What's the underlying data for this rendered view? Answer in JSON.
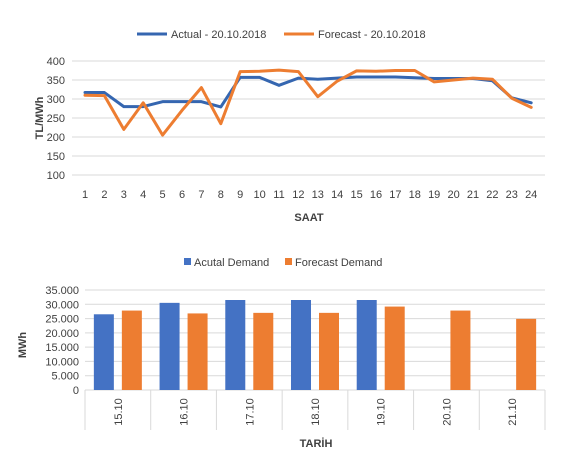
{
  "chart_data": [
    {
      "type": "line",
      "legend_position": "top",
      "grid": true,
      "xlabel": "SAAT",
      "ylabel": "TL/MWh",
      "ylim": [
        100,
        400
      ],
      "yticks": [
        "100",
        "150",
        "200",
        "250",
        "300",
        "350",
        "400"
      ],
      "x": [
        "1",
        "2",
        "3",
        "4",
        "5",
        "6",
        "7",
        "8",
        "9",
        "10",
        "11",
        "12",
        "13",
        "14",
        "15",
        "16",
        "17",
        "18",
        "19",
        "20",
        "21",
        "22",
        "23",
        "24"
      ],
      "series": [
        {
          "name": "Actual - 20.10.2018",
          "color": "#3566B0",
          "values": [
            317,
            317,
            280,
            280,
            293,
            293,
            293,
            279,
            357,
            357,
            336,
            355,
            352,
            355,
            358,
            358,
            358,
            356,
            354,
            354,
            354,
            348,
            303,
            290
          ]
        },
        {
          "name": "Forecast - 20.10.2018",
          "color": "#ED7D31",
          "values": [
            310,
            309,
            220,
            290,
            205,
            270,
            330,
            235,
            372,
            373,
            376,
            372,
            306,
            347,
            374,
            373,
            375,
            375,
            345,
            350,
            355,
            352,
            302,
            278
          ]
        }
      ]
    },
    {
      "type": "bar",
      "legend_position": "top",
      "grid": true,
      "xlabel": "TARİH",
      "ylabel": "MWh",
      "ylim": [
        0,
        35000
      ],
      "yticks": [
        "0",
        "5.000",
        "10.000",
        "15.000",
        "20.000",
        "25.000",
        "30.000",
        "35.000"
      ],
      "categories": [
        "15.10",
        "16.10",
        "17.10",
        "18.10",
        "19.10",
        "20.10",
        "21.10"
      ],
      "series": [
        {
          "name": "Acutal Demand",
          "color": "#4472C4",
          "values": [
            26500,
            30500,
            31500,
            31500,
            31500,
            null,
            null
          ]
        },
        {
          "name": "Forecast Demand",
          "color": "#ED7D31",
          "values": [
            27800,
            26800,
            27000,
            27000,
            29200,
            27800,
            24900
          ]
        }
      ]
    }
  ]
}
